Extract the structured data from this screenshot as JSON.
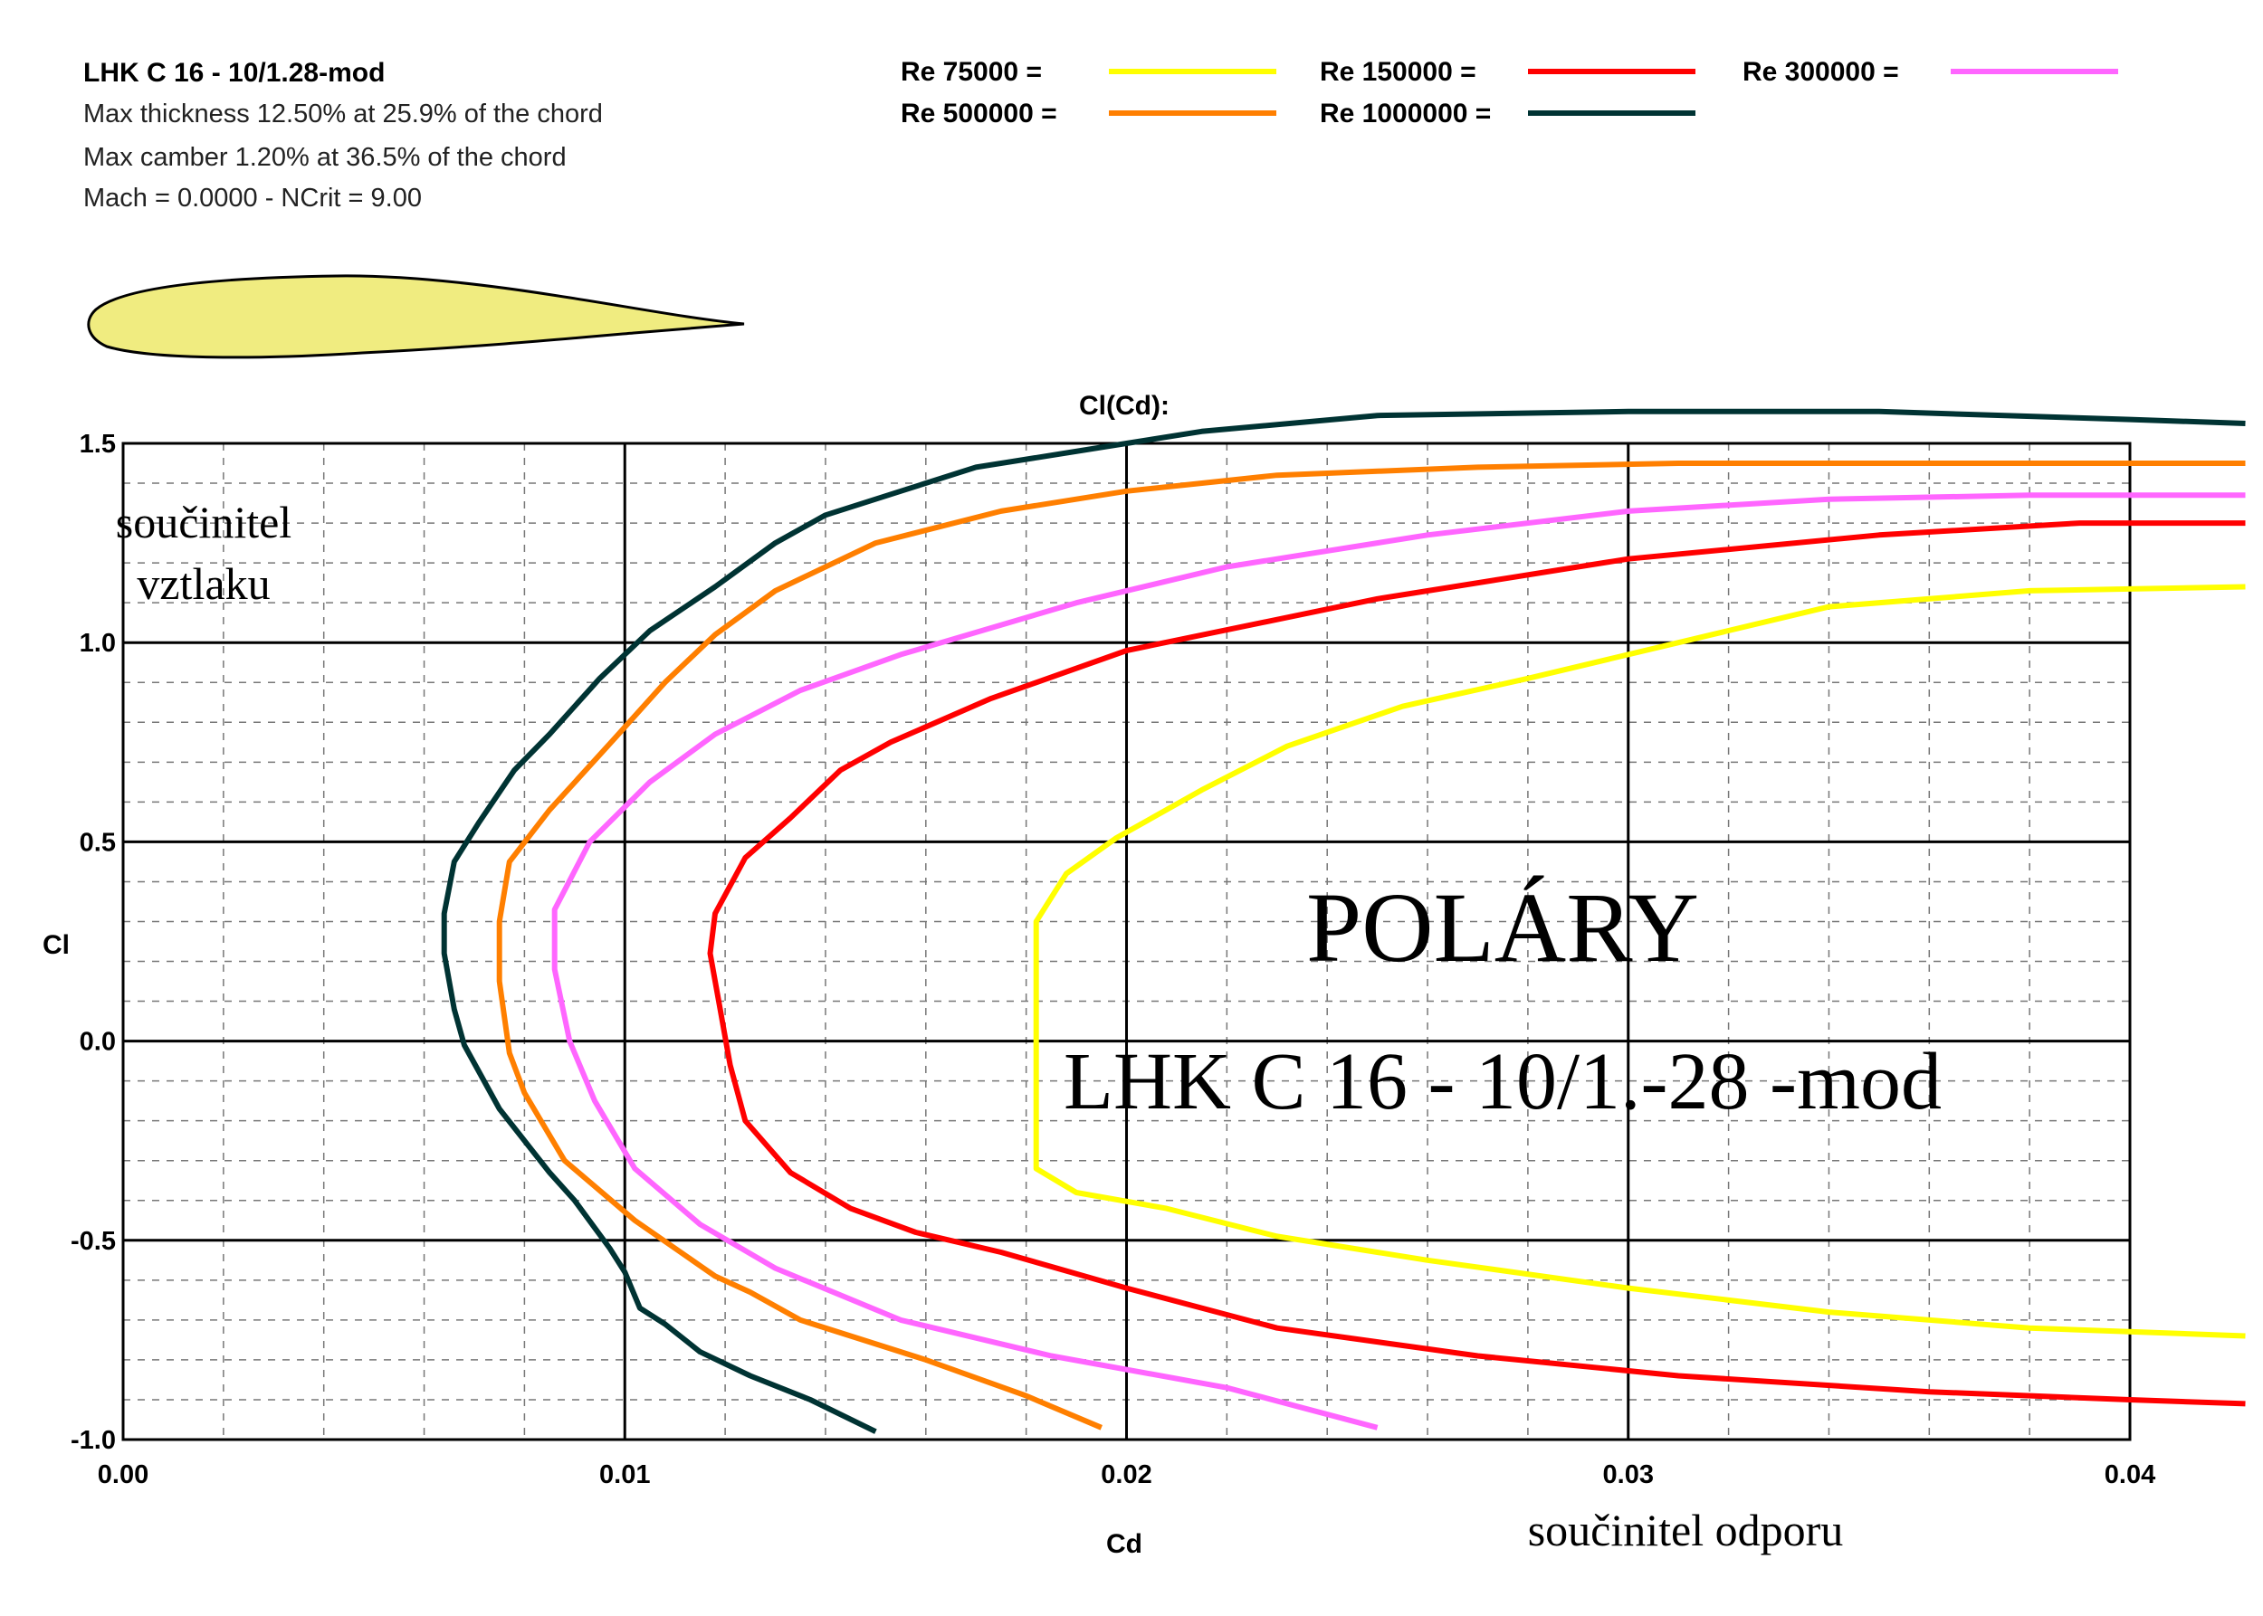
{
  "header": {
    "airfoil_name": "LHK C 16 - 10/1.28-mod",
    "thickness_line": "Max thickness 12.50% at 25.9% of the chord",
    "camber_line": "Max camber 1.20% at 36.5% of the chord",
    "mach_line": "Mach = 0.0000 - NCrit = 9.00"
  },
  "legend": [
    {
      "label": "Re 75000 =",
      "color": "#ffff00"
    },
    {
      "label": "Re 150000 =",
      "color": "#ff0000"
    },
    {
      "label": "Re 300000 =",
      "color": "#ff66ff"
    },
    {
      "label": "Re 500000 =",
      "color": "#ff7f00"
    },
    {
      "label": "Re 1000000 =",
      "color": "#003333"
    }
  ],
  "airfoil_fill_color": "#f0ec80",
  "annotations": {
    "ylabel_czech_line1": "součinitel",
    "ylabel_czech_line2": "vztlaku",
    "xlabel_czech": "součinitel  odporu",
    "big_title": "POLÁRY",
    "big_subtitle": "LHK C 16 - 10/1.-28 -mod"
  },
  "chart_data": {
    "type": "line",
    "title": "Cl(Cd):",
    "xlabel": "Cd",
    "ylabel": "Cl",
    "xlim": [
      0.0,
      0.04
    ],
    "ylim": [
      -1.0,
      1.5
    ],
    "xticks": [
      "0.00",
      "0.01",
      "0.02",
      "0.03",
      "0.04"
    ],
    "yticks": [
      "-1.0",
      "-0.5",
      "0.0",
      "0.5",
      "1.0",
      "1.5"
    ],
    "grid": true,
    "series": [
      {
        "name": "Re 75000",
        "color": "#ffff00",
        "points": [
          [
            0.0423,
            1.14
          ],
          [
            0.038,
            1.13
          ],
          [
            0.034,
            1.09
          ],
          [
            0.031,
            1.0
          ],
          [
            0.028,
            0.91
          ],
          [
            0.0255,
            0.84
          ],
          [
            0.0232,
            0.74
          ],
          [
            0.0215,
            0.63
          ],
          [
            0.0198,
            0.51
          ],
          [
            0.0188,
            0.42
          ],
          [
            0.0182,
            0.3
          ],
          [
            0.0182,
            0.1
          ],
          [
            0.0182,
            -0.1
          ],
          [
            0.0182,
            -0.32
          ],
          [
            0.019,
            -0.38
          ],
          [
            0.0208,
            -0.42
          ],
          [
            0.023,
            -0.49
          ],
          [
            0.026,
            -0.55
          ],
          [
            0.03,
            -0.62
          ],
          [
            0.034,
            -0.68
          ],
          [
            0.038,
            -0.72
          ],
          [
            0.0423,
            -0.74
          ]
        ]
      },
      {
        "name": "Re 150000",
        "color": "#ff0000",
        "points": [
          [
            0.0423,
            1.3
          ],
          [
            0.039,
            1.3
          ],
          [
            0.035,
            1.27
          ],
          [
            0.03,
            1.21
          ],
          [
            0.025,
            1.11
          ],
          [
            0.02,
            0.98
          ],
          [
            0.0173,
            0.86
          ],
          [
            0.0153,
            0.75
          ],
          [
            0.0143,
            0.68
          ],
          [
            0.0133,
            0.56
          ],
          [
            0.0124,
            0.46
          ],
          [
            0.0118,
            0.32
          ],
          [
            0.0117,
            0.22
          ],
          [
            0.0119,
            0.08
          ],
          [
            0.0121,
            -0.06
          ],
          [
            0.0124,
            -0.2
          ],
          [
            0.0133,
            -0.33
          ],
          [
            0.0145,
            -0.42
          ],
          [
            0.0158,
            -0.48
          ],
          [
            0.0175,
            -0.53
          ],
          [
            0.02,
            -0.62
          ],
          [
            0.023,
            -0.72
          ],
          [
            0.027,
            -0.79
          ],
          [
            0.031,
            -0.84
          ],
          [
            0.036,
            -0.88
          ],
          [
            0.04,
            -0.9
          ],
          [
            0.0423,
            -0.91
          ]
        ]
      },
      {
        "name": "Re 300000",
        "color": "#ff66ff",
        "points": [
          [
            0.0423,
            1.37
          ],
          [
            0.038,
            1.37
          ],
          [
            0.034,
            1.36
          ],
          [
            0.03,
            1.33
          ],
          [
            0.026,
            1.27
          ],
          [
            0.022,
            1.19
          ],
          [
            0.019,
            1.1
          ],
          [
            0.0155,
            0.97
          ],
          [
            0.0135,
            0.88
          ],
          [
            0.0118,
            0.77
          ],
          [
            0.0105,
            0.65
          ],
          [
            0.0093,
            0.5
          ],
          [
            0.0086,
            0.33
          ],
          [
            0.0086,
            0.18
          ],
          [
            0.0089,
            0.0
          ],
          [
            0.0094,
            -0.15
          ],
          [
            0.0102,
            -0.32
          ],
          [
            0.0115,
            -0.46
          ],
          [
            0.013,
            -0.57
          ],
          [
            0.0155,
            -0.7
          ],
          [
            0.0185,
            -0.79
          ],
          [
            0.022,
            -0.87
          ],
          [
            0.025,
            -0.97
          ]
        ]
      },
      {
        "name": "Re 500000",
        "color": "#ff7f00",
        "points": [
          [
            0.0423,
            1.45
          ],
          [
            0.038,
            1.45
          ],
          [
            0.035,
            1.45
          ],
          [
            0.031,
            1.45
          ],
          [
            0.027,
            1.44
          ],
          [
            0.023,
            1.42
          ],
          [
            0.02,
            1.38
          ],
          [
            0.0175,
            1.33
          ],
          [
            0.015,
            1.25
          ],
          [
            0.013,
            1.13
          ],
          [
            0.0118,
            1.02
          ],
          [
            0.0108,
            0.9
          ],
          [
            0.0098,
            0.76
          ],
          [
            0.0085,
            0.58
          ],
          [
            0.0077,
            0.45
          ],
          [
            0.0075,
            0.3
          ],
          [
            0.0075,
            0.15
          ],
          [
            0.0077,
            -0.03
          ],
          [
            0.008,
            -0.13
          ],
          [
            0.0088,
            -0.3
          ],
          [
            0.0102,
            -0.45
          ],
          [
            0.0118,
            -0.59
          ],
          [
            0.0125,
            -0.63
          ],
          [
            0.0135,
            -0.7
          ],
          [
            0.016,
            -0.8
          ],
          [
            0.018,
            -0.89
          ],
          [
            0.0195,
            -0.97
          ]
        ]
      },
      {
        "name": "Re 1000000",
        "color": "#003333",
        "points": [
          [
            0.0423,
            1.55
          ],
          [
            0.04,
            1.56
          ],
          [
            0.035,
            1.58
          ],
          [
            0.03,
            1.58
          ],
          [
            0.025,
            1.57
          ],
          [
            0.0215,
            1.53
          ],
          [
            0.0195,
            1.49
          ],
          [
            0.017,
            1.44
          ],
          [
            0.0155,
            1.38
          ],
          [
            0.014,
            1.32
          ],
          [
            0.013,
            1.25
          ],
          [
            0.0118,
            1.14
          ],
          [
            0.0105,
            1.03
          ],
          [
            0.0095,
            0.91
          ],
          [
            0.0085,
            0.77
          ],
          [
            0.0078,
            0.68
          ],
          [
            0.0071,
            0.55
          ],
          [
            0.0066,
            0.45
          ],
          [
            0.0064,
            0.32
          ],
          [
            0.0064,
            0.22
          ],
          [
            0.0066,
            0.08
          ],
          [
            0.0068,
            -0.01
          ],
          [
            0.0075,
            -0.17
          ],
          [
            0.0085,
            -0.33
          ],
          [
            0.009,
            -0.4
          ],
          [
            0.0097,
            -0.52
          ],
          [
            0.01,
            -0.58
          ],
          [
            0.0103,
            -0.67
          ],
          [
            0.0108,
            -0.71
          ],
          [
            0.0115,
            -0.78
          ],
          [
            0.0125,
            -0.84
          ],
          [
            0.0137,
            -0.9
          ],
          [
            0.015,
            -0.98
          ]
        ]
      }
    ]
  }
}
